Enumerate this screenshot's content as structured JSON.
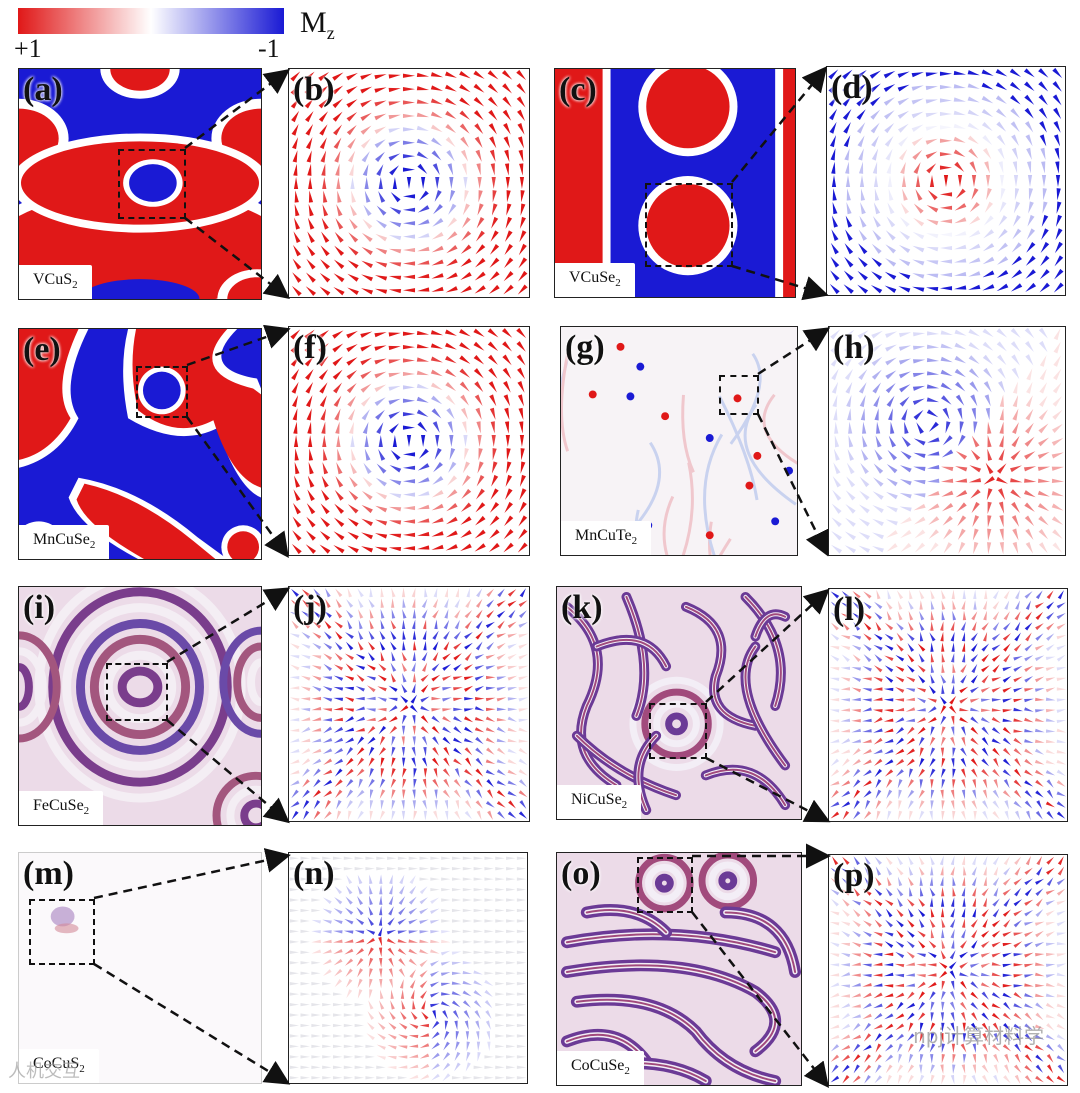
{
  "colorbar": {
    "title_main": "M",
    "title_sub": "z",
    "max_label": "+1",
    "min_label": "-1",
    "color_positive": "#e02020",
    "color_zero": "#ffffff",
    "color_negative": "#1c1cd6"
  },
  "panels": {
    "a": {
      "label": "(a)",
      "material_main": "VCuS",
      "material_sub": "2"
    },
    "b": {
      "label": "(b)"
    },
    "c": {
      "label": "(c)",
      "material_main": "VCuSe",
      "material_sub": "2"
    },
    "d": {
      "label": "(d)"
    },
    "e": {
      "label": "(e)",
      "material_main": "MnCuSe",
      "material_sub": "2"
    },
    "f": {
      "label": "(f)"
    },
    "g": {
      "label": "(g)",
      "material_main": "MnCuTe",
      "material_sub": "2"
    },
    "h": {
      "label": "(h)"
    },
    "i": {
      "label": "(i)",
      "material_main": "FeCuSe",
      "material_sub": "2"
    },
    "j": {
      "label": "(j)"
    },
    "k": {
      "label": "(k)",
      "material_main": "NiCuSe",
      "material_sub": "2"
    },
    "l": {
      "label": "(l)"
    },
    "m": {
      "label": "(m)",
      "material_main": "CoCuS",
      "material_sub": "2"
    },
    "n": {
      "label": "(n)"
    },
    "o": {
      "label": "(o)",
      "material_main": "CoCuSe",
      "material_sub": "2"
    },
    "p": {
      "label": "(p)"
    }
  },
  "watermark": "npj计算材料学",
  "watermark2": "人机交互"
}
